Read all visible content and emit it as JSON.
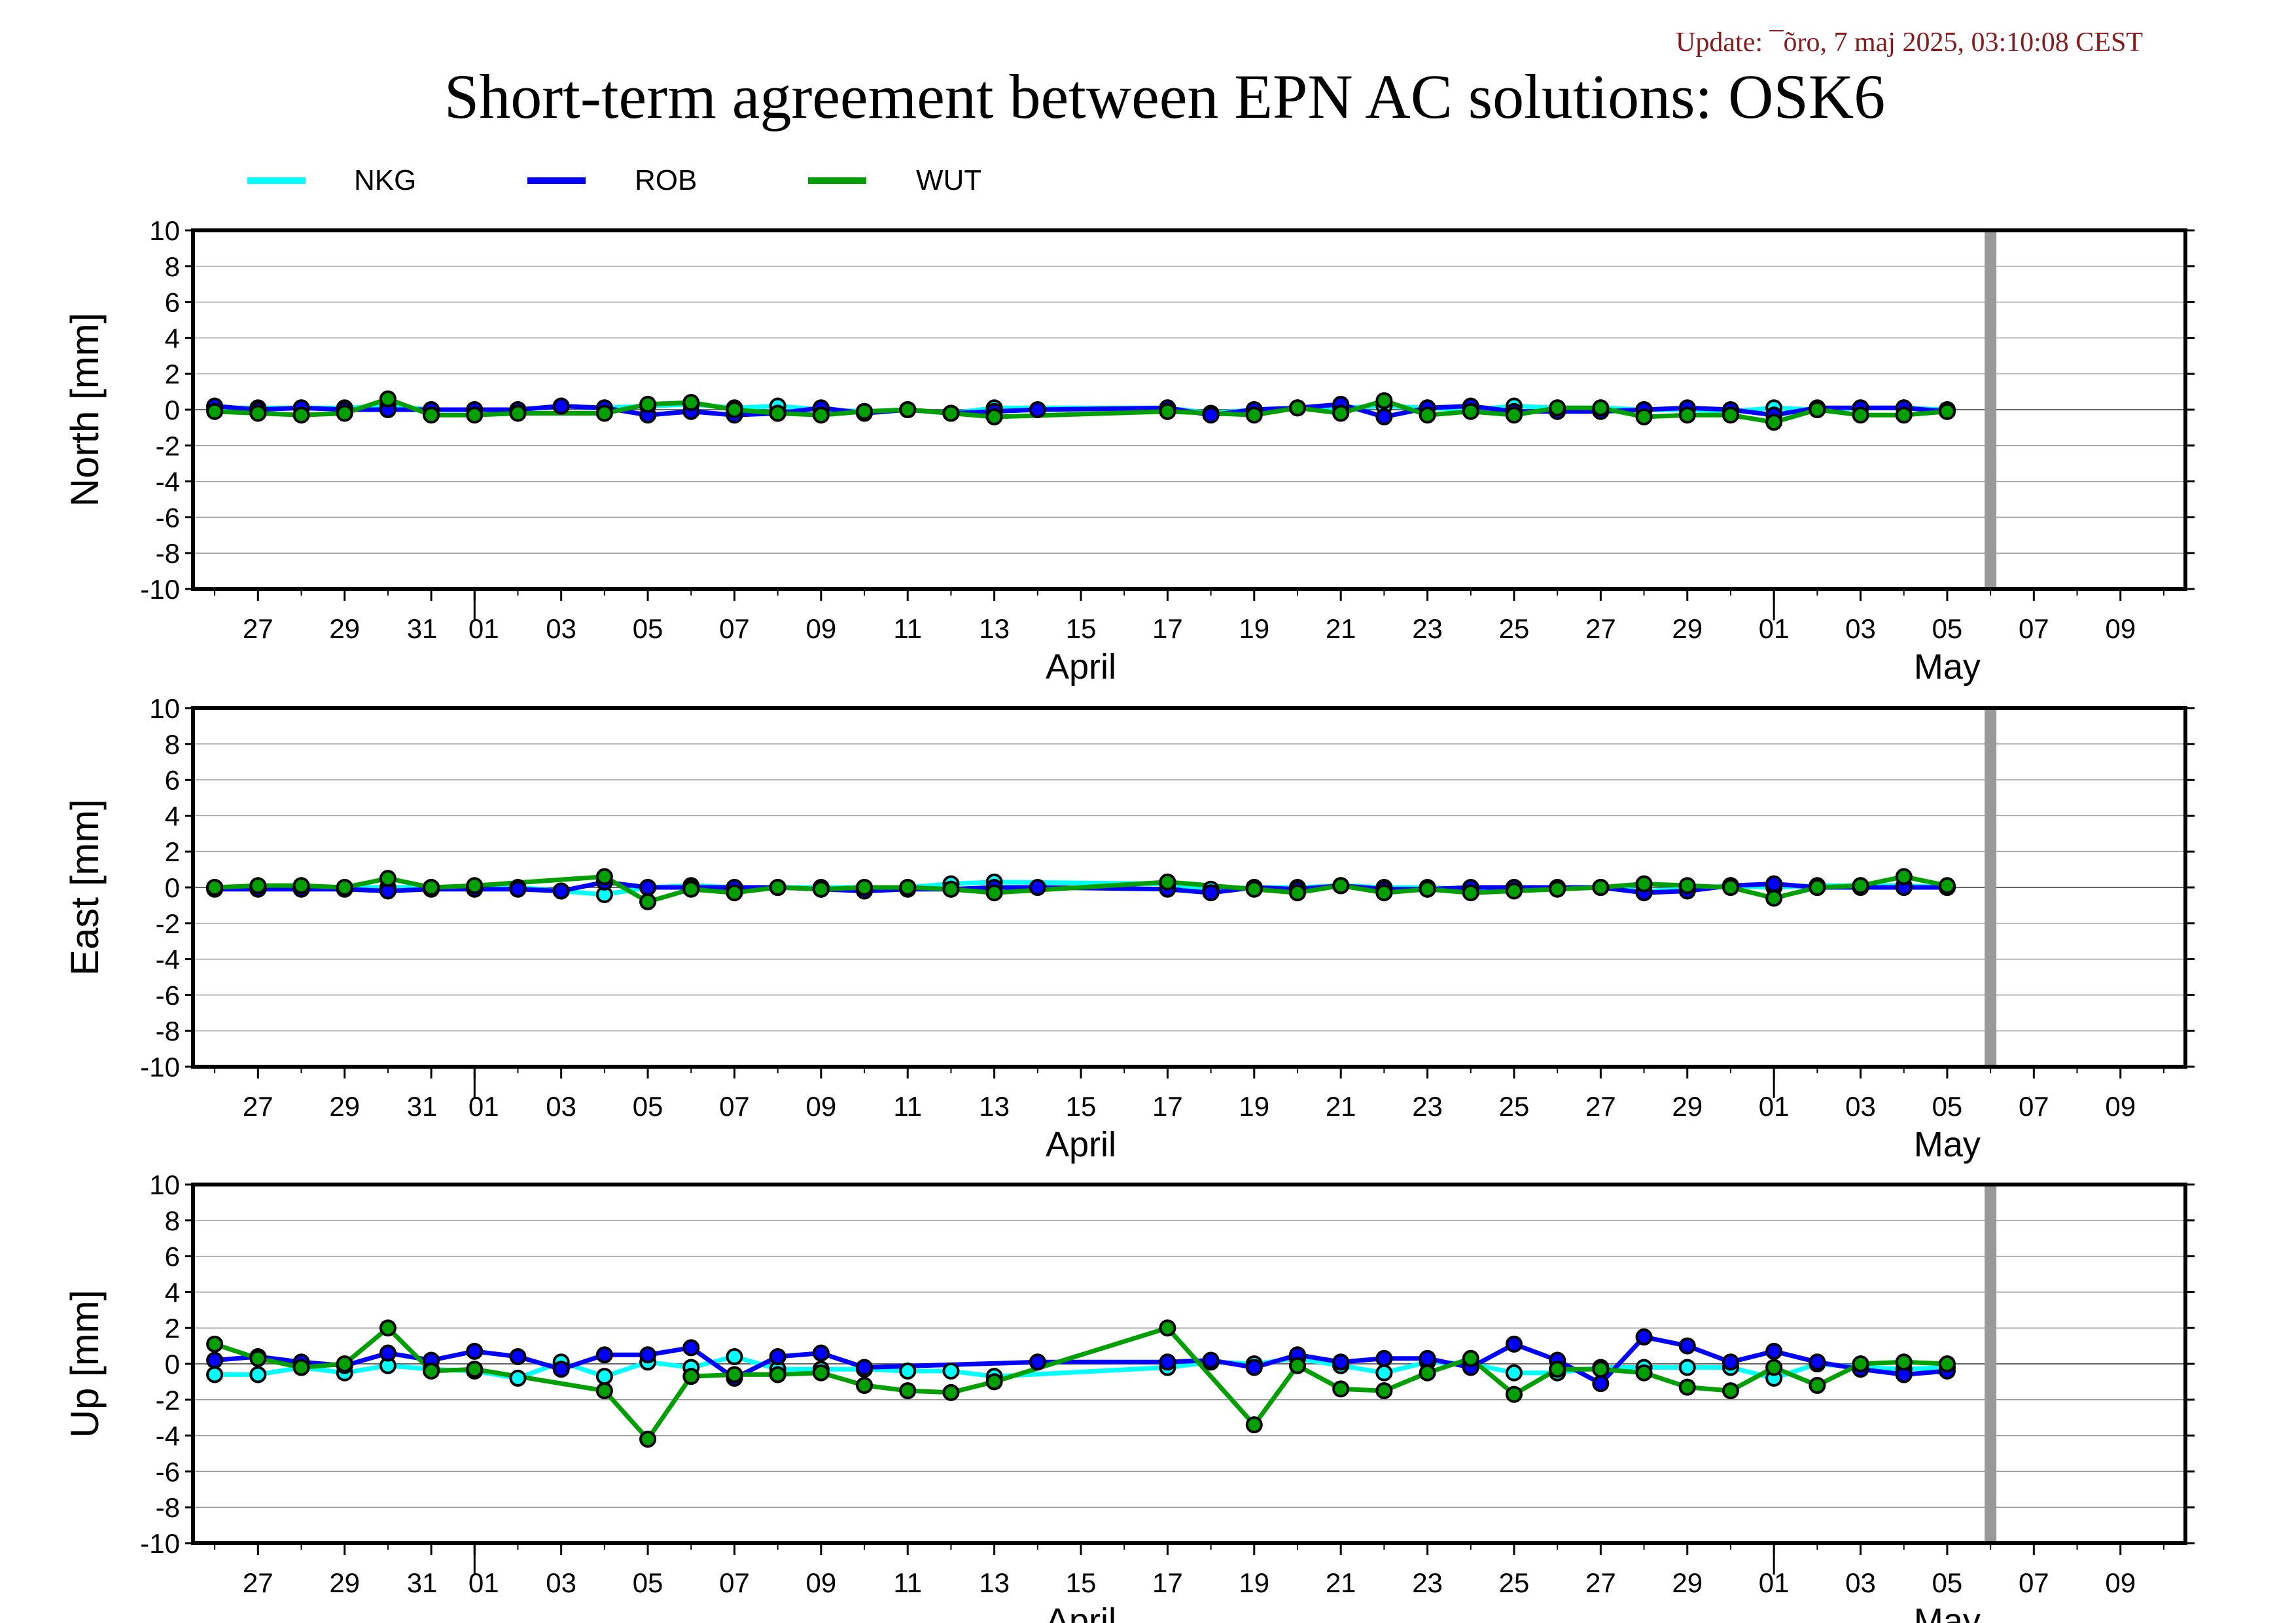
{
  "header": {
    "update_text": "Update: ¯õro, 7 maj 2025, 03:10:08 CEST",
    "title": "Short-term agreement between EPN AC solutions: OSK6"
  },
  "colors": {
    "NKG": "#00ffff",
    "ROB": "#0000ff",
    "WUT": "#00a000",
    "update_text": "#8b1a1a",
    "marker_line": "#999999"
  },
  "chart_data": [
    {
      "type": "line",
      "ylabel": "North [mm]",
      "ylim": [
        -10,
        10
      ],
      "yticks": [
        10,
        8,
        6,
        4,
        2,
        0,
        -2,
        -4,
        -6,
        -8,
        -10
      ],
      "xlim": [
        "2025-03-25T12:00",
        "2025-05-10T12:00"
      ],
      "xtick_labels": [
        "27",
        "29",
        "31",
        "01",
        "03",
        "05",
        "07",
        "09",
        "11",
        "13",
        "15",
        "17",
        "19",
        "21",
        "23",
        "25",
        "27",
        "29",
        "01",
        "03",
        "05",
        "07",
        "09"
      ],
      "month_labels": [
        "April",
        "May"
      ],
      "vertical_marker_date": "2025-05-06",
      "grid": true,
      "legend": "top-left",
      "series": [
        {
          "name": "NKG",
          "color": "#00ffff",
          "x": [
            "2025-03-26",
            "2025-03-27",
            "2025-03-28",
            "2025-03-29",
            "2025-03-30",
            "2025-03-31",
            "2025-04-01",
            "2025-04-02",
            "2025-04-03",
            "2025-04-04",
            "2025-04-05",
            "2025-04-06",
            "2025-04-07",
            "2025-04-08",
            "2025-04-09",
            "2025-04-10",
            "2025-04-11",
            "2025-04-12",
            "2025-04-13",
            "2025-04-17",
            "2025-04-18",
            "2025-04-19",
            "2025-04-20",
            "2025-04-21",
            "2025-04-22",
            "2025-04-23",
            "2025-04-24",
            "2025-04-25",
            "2025-04-26",
            "2025-04-27",
            "2025-04-28",
            "2025-04-29",
            "2025-04-30",
            "2025-05-01",
            "2025-05-02",
            "2025-05-03",
            "2025-05-04",
            "2025-05-05"
          ],
          "y": [
            0.1,
            0.1,
            0.1,
            0.1,
            0.2,
            0.0,
            0.0,
            0.0,
            0.2,
            0.1,
            0.2,
            0.3,
            0.1,
            0.2,
            0.0,
            -0.1,
            0.0,
            -0.2,
            0.1,
            0.1,
            -0.2,
            0.0,
            0.1,
            0.1,
            0.2,
            0.1,
            0.0,
            0.2,
            0.1,
            0.1,
            0.0,
            0.0,
            -0.1,
            0.1,
            0.0,
            0.1,
            0.1,
            0.0
          ]
        },
        {
          "name": "ROB",
          "color": "#0000ff",
          "x": [
            "2025-03-26",
            "2025-03-27",
            "2025-03-28",
            "2025-03-29",
            "2025-03-30",
            "2025-03-31",
            "2025-04-01",
            "2025-04-02",
            "2025-04-03",
            "2025-04-04",
            "2025-04-05",
            "2025-04-06",
            "2025-04-07",
            "2025-04-08",
            "2025-04-09",
            "2025-04-10",
            "2025-04-11",
            "2025-04-12",
            "2025-04-13",
            "2025-04-14",
            "2025-04-17",
            "2025-04-18",
            "2025-04-19",
            "2025-04-20",
            "2025-04-21",
            "2025-04-22",
            "2025-04-23",
            "2025-04-24",
            "2025-04-25",
            "2025-04-26",
            "2025-04-27",
            "2025-04-28",
            "2025-04-29",
            "2025-04-30",
            "2025-05-01",
            "2025-05-02",
            "2025-05-03",
            "2025-05-04",
            "2025-05-05"
          ],
          "y": [
            0.2,
            0.0,
            0.1,
            0.0,
            0.0,
            0.0,
            0.0,
            0.0,
            0.2,
            0.1,
            -0.3,
            -0.1,
            -0.3,
            -0.2,
            0.1,
            -0.2,
            0.0,
            -0.2,
            -0.1,
            0.0,
            0.1,
            -0.3,
            0.0,
            0.1,
            0.3,
            -0.4,
            0.1,
            0.2,
            -0.1,
            -0.1,
            -0.1,
            0.0,
            0.1,
            0.0,
            -0.3,
            0.1,
            0.1,
            0.1,
            -0.1
          ]
        },
        {
          "name": "WUT",
          "color": "#00a000",
          "x": [
            "2025-03-26",
            "2025-03-27",
            "2025-03-28",
            "2025-03-29",
            "2025-03-30",
            "2025-03-31",
            "2025-04-01",
            "2025-04-02",
            "2025-04-04",
            "2025-04-05",
            "2025-04-06",
            "2025-04-07",
            "2025-04-08",
            "2025-04-09",
            "2025-04-10",
            "2025-04-11",
            "2025-04-12",
            "2025-04-13",
            "2025-04-17",
            "2025-04-19",
            "2025-04-20",
            "2025-04-21",
            "2025-04-22",
            "2025-04-23",
            "2025-04-24",
            "2025-04-25",
            "2025-04-26",
            "2025-04-27",
            "2025-04-28",
            "2025-04-29",
            "2025-04-30",
            "2025-05-01",
            "2025-05-02",
            "2025-05-03",
            "2025-05-04",
            "2025-05-05"
          ],
          "y": [
            -0.1,
            -0.2,
            -0.3,
            -0.2,
            0.6,
            -0.3,
            -0.3,
            -0.2,
            -0.2,
            0.3,
            0.4,
            0.0,
            -0.2,
            -0.3,
            -0.1,
            0.0,
            -0.2,
            -0.4,
            -0.1,
            -0.3,
            0.1,
            -0.2,
            0.5,
            -0.3,
            -0.1,
            -0.3,
            0.1,
            0.1,
            -0.4,
            -0.3,
            -0.3,
            -0.7,
            0.0,
            -0.3,
            -0.3,
            -0.1
          ]
        }
      ]
    },
    {
      "type": "line",
      "ylabel": "East [mm]",
      "ylim": [
        -10,
        10
      ],
      "yticks": [
        10,
        8,
        6,
        4,
        2,
        0,
        -2,
        -4,
        -6,
        -8,
        -10
      ],
      "xlim": [
        "2025-03-25T12:00",
        "2025-05-10T12:00"
      ],
      "xtick_labels": [
        "27",
        "29",
        "31",
        "01",
        "03",
        "05",
        "07",
        "09",
        "11",
        "13",
        "15",
        "17",
        "19",
        "21",
        "23",
        "25",
        "27",
        "29",
        "01",
        "03",
        "05",
        "07",
        "09"
      ],
      "month_labels": [
        "April",
        "May"
      ],
      "vertical_marker_date": "2025-05-06",
      "grid": true,
      "series": [
        {
          "name": "NKG",
          "color": "#00ffff",
          "x": [
            "2025-03-26",
            "2025-03-27",
            "2025-03-28",
            "2025-03-29",
            "2025-03-30",
            "2025-03-31",
            "2025-04-01",
            "2025-04-02",
            "2025-04-03",
            "2025-04-04",
            "2025-04-05",
            "2025-04-06",
            "2025-04-07",
            "2025-04-08",
            "2025-04-09",
            "2025-04-10",
            "2025-04-11",
            "2025-04-12",
            "2025-04-13",
            "2025-04-17",
            "2025-04-18",
            "2025-04-19",
            "2025-04-20",
            "2025-04-21",
            "2025-04-22",
            "2025-04-23",
            "2025-04-24",
            "2025-04-25",
            "2025-04-26",
            "2025-04-27",
            "2025-04-28",
            "2025-04-29",
            "2025-04-30",
            "2025-05-01",
            "2025-05-02",
            "2025-05-03",
            "2025-05-04",
            "2025-05-05"
          ],
          "y": [
            0.0,
            0.0,
            0.0,
            0.0,
            0.0,
            0.0,
            0.0,
            0.0,
            -0.2,
            -0.4,
            0.0,
            0.1,
            0.0,
            0.0,
            0.0,
            0.0,
            0.0,
            0.2,
            0.3,
            0.2,
            -0.1,
            0.0,
            0.0,
            0.1,
            0.0,
            0.0,
            -0.1,
            0.0,
            0.0,
            0.0,
            -0.2,
            -0.1,
            0.1,
            0.0,
            0.1,
            0.1,
            0.1,
            0.0
          ]
        },
        {
          "name": "ROB",
          "color": "#0000ff",
          "x": [
            "2025-03-26",
            "2025-03-27",
            "2025-03-28",
            "2025-03-29",
            "2025-03-30",
            "2025-03-31",
            "2025-04-01",
            "2025-04-02",
            "2025-04-03",
            "2025-04-04",
            "2025-04-05",
            "2025-04-06",
            "2025-04-07",
            "2025-04-08",
            "2025-04-09",
            "2025-04-10",
            "2025-04-11",
            "2025-04-12",
            "2025-04-13",
            "2025-04-14",
            "2025-04-17",
            "2025-04-18",
            "2025-04-19",
            "2025-04-20",
            "2025-04-21",
            "2025-04-22",
            "2025-04-23",
            "2025-04-24",
            "2025-04-25",
            "2025-04-26",
            "2025-04-27",
            "2025-04-28",
            "2025-04-29",
            "2025-04-30",
            "2025-05-01",
            "2025-05-02",
            "2025-05-03",
            "2025-05-04",
            "2025-05-05"
          ],
          "y": [
            -0.1,
            -0.1,
            -0.1,
            -0.1,
            -0.2,
            -0.1,
            -0.1,
            -0.1,
            -0.2,
            0.3,
            0.0,
            0.0,
            0.0,
            0.0,
            -0.1,
            -0.2,
            -0.1,
            -0.1,
            0.0,
            0.0,
            -0.1,
            -0.3,
            0.0,
            -0.1,
            0.1,
            -0.1,
            -0.1,
            0.0,
            0.0,
            0.0,
            0.0,
            -0.3,
            -0.2,
            0.1,
            0.2,
            0.0,
            0.0,
            0.0,
            0.0
          ]
        },
        {
          "name": "WUT",
          "color": "#00a000",
          "x": [
            "2025-03-26",
            "2025-03-27",
            "2025-03-28",
            "2025-03-29",
            "2025-03-30",
            "2025-03-31",
            "2025-04-01",
            "2025-04-04",
            "2025-04-05",
            "2025-04-06",
            "2025-04-07",
            "2025-04-08",
            "2025-04-09",
            "2025-04-10",
            "2025-04-11",
            "2025-04-12",
            "2025-04-13",
            "2025-04-17",
            "2025-04-19",
            "2025-04-20",
            "2025-04-21",
            "2025-04-22",
            "2025-04-23",
            "2025-04-24",
            "2025-04-25",
            "2025-04-26",
            "2025-04-27",
            "2025-04-28",
            "2025-04-29",
            "2025-04-30",
            "2025-05-01",
            "2025-05-02",
            "2025-05-03",
            "2025-05-04",
            "2025-05-05"
          ],
          "y": [
            0.0,
            0.1,
            0.1,
            0.0,
            0.5,
            0.0,
            0.1,
            0.6,
            -0.8,
            -0.1,
            -0.3,
            0.0,
            -0.1,
            0.0,
            0.0,
            -0.1,
            -0.3,
            0.3,
            -0.1,
            -0.3,
            0.1,
            -0.3,
            -0.1,
            -0.3,
            -0.2,
            -0.1,
            0.0,
            0.2,
            0.1,
            0.0,
            -0.6,
            0.0,
            0.1,
            0.6,
            0.1
          ]
        }
      ]
    },
    {
      "type": "line",
      "ylabel": "Up [mm]",
      "ylim": [
        -10,
        10
      ],
      "yticks": [
        10,
        8,
        6,
        4,
        2,
        0,
        -2,
        -4,
        -6,
        -8,
        -10
      ],
      "xlim": [
        "2025-03-25T12:00",
        "2025-05-10T12:00"
      ],
      "xtick_labels": [
        "27",
        "29",
        "31",
        "01",
        "03",
        "05",
        "07",
        "09",
        "11",
        "13",
        "15",
        "17",
        "19",
        "21",
        "23",
        "25",
        "27",
        "29",
        "01",
        "03",
        "05",
        "07",
        "09"
      ],
      "month_labels": [
        "April",
        "May"
      ],
      "vertical_marker_date": "2025-05-06",
      "grid": true,
      "series": [
        {
          "name": "NKG",
          "color": "#00ffff",
          "x": [
            "2025-03-26",
            "2025-03-27",
            "2025-03-28",
            "2025-03-29",
            "2025-03-30",
            "2025-03-31",
            "2025-04-01",
            "2025-04-02",
            "2025-04-03",
            "2025-04-04",
            "2025-04-05",
            "2025-04-06",
            "2025-04-07",
            "2025-04-08",
            "2025-04-09",
            "2025-04-10",
            "2025-04-11",
            "2025-04-12",
            "2025-04-13",
            "2025-04-17",
            "2025-04-18",
            "2025-04-19",
            "2025-04-20",
            "2025-04-21",
            "2025-04-22",
            "2025-04-23",
            "2025-04-24",
            "2025-04-25",
            "2025-04-26",
            "2025-04-27",
            "2025-04-28",
            "2025-04-29",
            "2025-04-30",
            "2025-05-01",
            "2025-05-02",
            "2025-05-03",
            "2025-05-04",
            "2025-05-05"
          ],
          "y": [
            -0.6,
            -0.6,
            -0.2,
            -0.5,
            -0.1,
            -0.3,
            -0.4,
            -0.8,
            0.1,
            -0.7,
            0.1,
            -0.2,
            0.4,
            -0.3,
            -0.3,
            -0.3,
            -0.4,
            -0.4,
            -0.7,
            -0.2,
            0.1,
            0.0,
            0.3,
            -0.1,
            -0.5,
            0.1,
            0.0,
            -0.5,
            -0.5,
            -0.2,
            -0.2,
            -0.2,
            -0.2,
            -0.8,
            0.0,
            -0.2,
            -0.3,
            -0.2
          ]
        },
        {
          "name": "ROB",
          "color": "#0000ff",
          "x": [
            "2025-03-26",
            "2025-03-27",
            "2025-03-28",
            "2025-03-29",
            "2025-03-30",
            "2025-03-31",
            "2025-04-01",
            "2025-04-02",
            "2025-04-03",
            "2025-04-04",
            "2025-04-05",
            "2025-04-06",
            "2025-04-07",
            "2025-04-08",
            "2025-04-09",
            "2025-04-10",
            "2025-04-14",
            "2025-04-17",
            "2025-04-18",
            "2025-04-19",
            "2025-04-20",
            "2025-04-21",
            "2025-04-22",
            "2025-04-23",
            "2025-04-24",
            "2025-04-25",
            "2025-04-26",
            "2025-04-27",
            "2025-04-28",
            "2025-04-29",
            "2025-04-30",
            "2025-05-01",
            "2025-05-02",
            "2025-05-03",
            "2025-05-04",
            "2025-05-05"
          ],
          "y": [
            0.2,
            0.4,
            0.1,
            -0.1,
            0.6,
            0.2,
            0.7,
            0.4,
            -0.3,
            0.5,
            0.5,
            0.9,
            -0.8,
            0.4,
            0.6,
            -0.2,
            0.1,
            0.1,
            0.2,
            -0.2,
            0.5,
            0.1,
            0.3,
            0.3,
            -0.2,
            1.1,
            0.2,
            -1.1,
            1.5,
            1.0,
            0.1,
            0.7,
            0.1,
            -0.3,
            -0.6,
            -0.4
          ]
        },
        {
          "name": "WUT",
          "color": "#00a000",
          "x": [
            "2025-03-26",
            "2025-03-27",
            "2025-03-28",
            "2025-03-29",
            "2025-03-30",
            "2025-03-31",
            "2025-04-01",
            "2025-04-04",
            "2025-04-05",
            "2025-04-06",
            "2025-04-07",
            "2025-04-08",
            "2025-04-09",
            "2025-04-10",
            "2025-04-11",
            "2025-04-12",
            "2025-04-13",
            "2025-04-17",
            "2025-04-19",
            "2025-04-20",
            "2025-04-21",
            "2025-04-22",
            "2025-04-23",
            "2025-04-24",
            "2025-04-25",
            "2025-04-26",
            "2025-04-27",
            "2025-04-28",
            "2025-04-29",
            "2025-04-30",
            "2025-05-01",
            "2025-05-02",
            "2025-05-03",
            "2025-05-04",
            "2025-05-05"
          ],
          "y": [
            1.1,
            0.3,
            -0.2,
            0.0,
            2.0,
            -0.4,
            -0.3,
            -1.5,
            -4.2,
            -0.7,
            -0.6,
            -0.6,
            -0.5,
            -1.2,
            -1.5,
            -1.6,
            -1.0,
            2.0,
            -3.4,
            -0.1,
            -1.4,
            -1.5,
            -0.5,
            0.3,
            -1.7,
            -0.3,
            -0.3,
            -0.5,
            -1.3,
            -1.5,
            -0.2,
            -1.2,
            0.0,
            0.1,
            0.0
          ]
        }
      ]
    }
  ]
}
